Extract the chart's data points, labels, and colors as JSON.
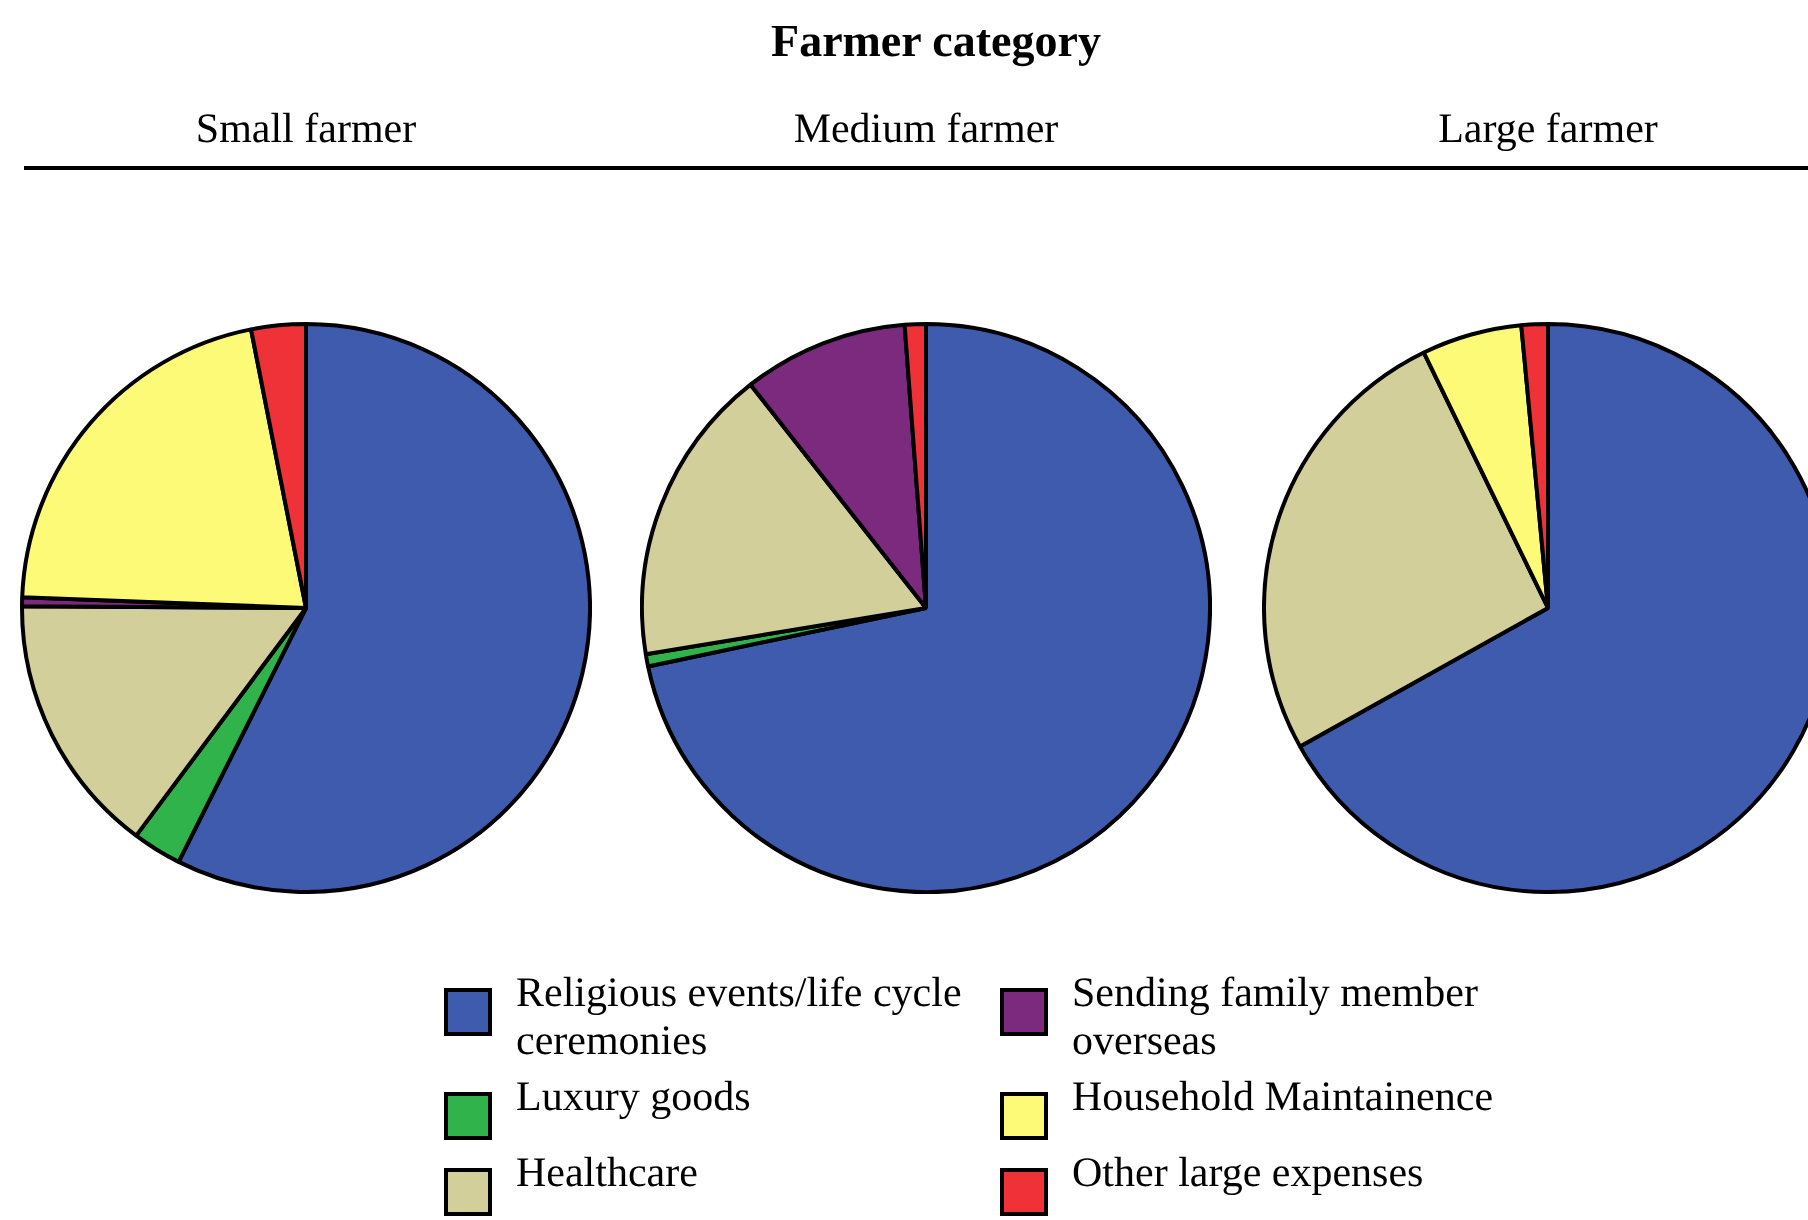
{
  "chart_data": [
    {
      "type": "pie",
      "title": "Small farmer",
      "annotations": [
        "Farmer category"
      ],
      "categories": [
        null,
        null,
        null,
        null,
        null,
        null
      ],
      "values": [
        57.4,
        2.8,
        14.9,
        0.5,
        21.3,
        3.1
      ],
      "colors": [
        "#3f5bad",
        "#2fb34a",
        "#d3cf9a",
        "#7b2a7e",
        "#fdfa78",
        "#ee3237"
      ],
      "legend": false
    },
    {
      "type": "pie",
      "title": "Medium farmer",
      "categories": [
        "Religious events/life cycle ceremonies",
        "Luxury goods",
        "Healthcare",
        "Sending family member overseas",
        "Household Maintainence",
        "Other large expenses"
      ],
      "values": [
        71.7,
        0.7,
        17,
        9.4,
        0,
        1.2
      ],
      "colors": [
        "#3f5bad",
        "#2fb34a",
        "#d3cf9a",
        "#7b2a7e",
        "#fdfa78",
        "#ee3237"
      ],
      "legend": "bottom"
    },
    {
      "type": "pie",
      "title": "Large farmer",
      "categories": [
        null,
        null,
        null,
        null,
        null,
        null
      ],
      "values": [
        66.9,
        0,
        25.9,
        0,
        5.7,
        1.5
      ],
      "colors": [
        "#3f5bad",
        "#2fb34a",
        "#d3cf9a",
        "#7b2a7e",
        "#fdfa78",
        "#ee3237"
      ],
      "legend": false
    }
  ]
}
